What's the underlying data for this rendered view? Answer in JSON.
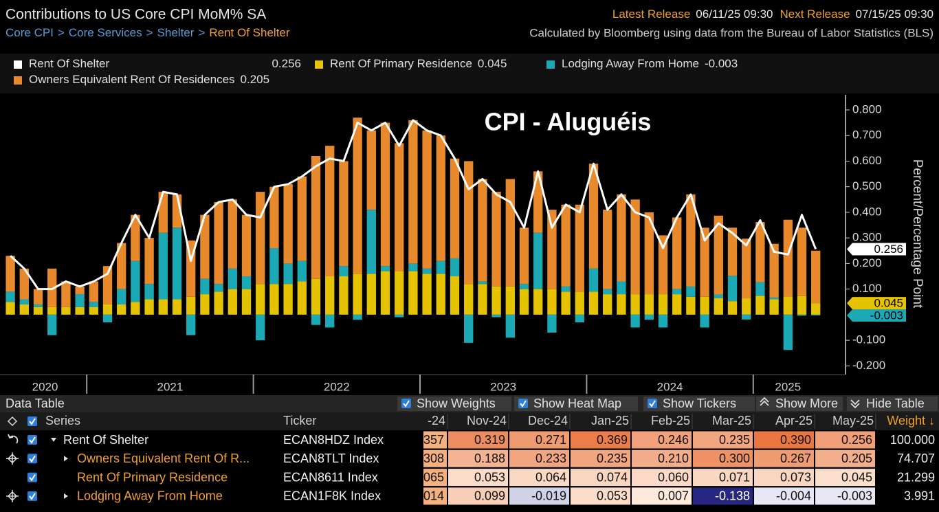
{
  "header": {
    "title": "Contributions to US Core CPI MoM% SA",
    "breadcrumb": [
      "Core CPI",
      "Core Services",
      "Shelter",
      "Rent Of Shelter"
    ],
    "separator": ">",
    "latest_release_label": "Latest Release",
    "latest_release": "06/11/25 09:30",
    "next_release_label": "Next Release",
    "next_release": "07/15/25 09:30",
    "source": "Calculated by Bloomberg using data from the Bureau of Labor Statistics (BLS)"
  },
  "chart_data": {
    "type": "bar",
    "stacked": true,
    "annotation": "CPI - Aluguéis",
    "ylabel": "Percent/Percentage Point",
    "categories": [
      null,
      null,
      null,
      null,
      null,
      null,
      null,
      null,
      null,
      null,
      null,
      null,
      null,
      null,
      null,
      null,
      null,
      null,
      null,
      null,
      null,
      null,
      null,
      null,
      null,
      null,
      null,
      null,
      null,
      null,
      null,
      null,
      null,
      null,
      null,
      null,
      null,
      null,
      null,
      null,
      null,
      null,
      null,
      null,
      null,
      null,
      null,
      null,
      null,
      null,
      null,
      null,
      null,
      null,
      null,
      null,
      null,
      null,
      null
    ],
    "year_labels": [
      "2020",
      "2021",
      "2022",
      "2023",
      "2024",
      "2025"
    ],
    "ylim": [
      -0.234,
      0.859
    ],
    "yticks": [
      {
        "value": 0.8,
        "label": "0.800"
      },
      {
        "value": 0.7,
        "label": "0.700"
      },
      {
        "value": 0.6,
        "label": "0.600"
      },
      {
        "value": 0.5,
        "label": "0.500"
      },
      {
        "value": 0.4,
        "label": "0.400"
      },
      {
        "value": 0.3,
        "label": "0.300"
      },
      {
        "value": 0.2,
        "label": "0.200"
      },
      {
        "value": 0.1,
        "label": "0.100"
      },
      {
        "value": -0.1,
        "label": "-0.100"
      },
      {
        "value": -0.2,
        "label": "-0.200"
      }
    ],
    "series": [
      {
        "name": "Rent Of Shelter",
        "type": "line",
        "color": "#ffffff",
        "last_value_label": true,
        "values": [
          0.23,
          0.18,
          0.1,
          0.1,
          0.13,
          0.11,
          0.13,
          0.16,
          0.28,
          0.39,
          0.3,
          0.48,
          0.47,
          0.21,
          0.39,
          0.44,
          0.45,
          0.39,
          0.38,
          0.5,
          0.51,
          0.54,
          0.58,
          0.61,
          0.6,
          0.75,
          0.72,
          0.75,
          0.66,
          0.76,
          0.72,
          0.7,
          0.61,
          0.49,
          0.53,
          0.47,
          0.44,
          0.34,
          0.56,
          0.34,
          0.43,
          0.4,
          0.59,
          0.41,
          0.47,
          0.4,
          0.38,
          0.26,
          0.38,
          0.47,
          0.29,
          0.357,
          0.319,
          0.271,
          0.369,
          0.246,
          0.235,
          0.39,
          0.256
        ]
      },
      {
        "name": "Rent Of Primary Residence",
        "type": "bar",
        "color": "#e6c300",
        "last_value_label": true,
        "values": [
          0.05,
          0.04,
          0.03,
          0.03,
          0.03,
          0.03,
          0.03,
          0.04,
          0.04,
          0.05,
          0.06,
          0.06,
          0.06,
          0.07,
          0.08,
          0.09,
          0.1,
          0.1,
          0.12,
          0.12,
          0.12,
          0.13,
          0.14,
          0.15,
          0.15,
          0.16,
          0.16,
          0.17,
          0.17,
          0.17,
          0.16,
          0.16,
          0.15,
          0.12,
          0.12,
          0.11,
          0.11,
          0.1,
          0.1,
          0.1,
          0.09,
          0.09,
          0.09,
          0.08,
          0.08,
          0.08,
          0.08,
          0.08,
          0.08,
          0.07,
          0.07,
          0.065,
          0.053,
          0.064,
          0.074,
          0.06,
          0.071,
          0.073,
          0.045
        ]
      },
      {
        "name": "Lodging Away From Home",
        "type": "bar",
        "color": "#1ba9b5",
        "last_value_label": true,
        "values": [
          0.04,
          0.02,
          0.01,
          -0.08,
          0.0,
          0.05,
          0.02,
          -0.03,
          0.06,
          0.16,
          0.06,
          0.26,
          0.28,
          -0.08,
          0.06,
          0.03,
          0.08,
          0.05,
          -0.1,
          0.14,
          0.08,
          0.08,
          -0.04,
          -0.05,
          0.04,
          -0.02,
          0.25,
          0.02,
          -0.01,
          0.03,
          0.02,
          0.05,
          0.07,
          -0.11,
          0.01,
          -0.01,
          -0.09,
          0.02,
          0.22,
          -0.07,
          0.02,
          -0.03,
          0.09,
          0.02,
          0.05,
          -0.05,
          -0.02,
          -0.05,
          0.02,
          0.04,
          -0.05,
          0.014,
          0.099,
          -0.019,
          0.053,
          0.007,
          -0.138,
          -0.004,
          -0.003
        ]
      },
      {
        "name": "Owners Equivalent Rent Of Residences",
        "type": "bar",
        "color": "#e8892b",
        "last_value_label": false,
        "values": [
          0.14,
          0.12,
          0.06,
          0.15,
          0.1,
          0.03,
          0.08,
          0.15,
          0.18,
          0.18,
          0.18,
          0.16,
          0.13,
          0.22,
          0.25,
          0.32,
          0.27,
          0.24,
          0.36,
          0.24,
          0.31,
          0.33,
          0.48,
          0.51,
          0.41,
          0.61,
          0.31,
          0.56,
          0.5,
          0.56,
          0.54,
          0.49,
          0.39,
          0.48,
          0.4,
          0.37,
          0.42,
          0.22,
          0.24,
          0.31,
          0.32,
          0.34,
          0.41,
          0.31,
          0.34,
          0.37,
          0.32,
          0.23,
          0.28,
          0.36,
          0.27,
          0.308,
          0.188,
          0.233,
          0.235,
          0.21,
          0.3,
          0.267,
          0.205
        ]
      }
    ]
  },
  "table": {
    "title": "Data Table",
    "toggles": [
      "Show Weights",
      "Show Heat Map",
      "Show Tickers"
    ],
    "buttons": [
      "Show More",
      "Hide Table"
    ],
    "columns": [
      "Series",
      "Ticker",
      "-24",
      "Nov-24",
      "Dec-24",
      "Jan-25",
      "Feb-25",
      "Mar-25",
      "Apr-25",
      "May-25",
      "Weight ↓"
    ],
    "rows": [
      [
        "Rent Of Shelter",
        "ECAN8HDZ Index",
        "357",
        "0.319",
        "0.271",
        "0.369",
        "0.246",
        "0.235",
        "0.390",
        "0.256",
        "100.000"
      ],
      [
        "Owners Equivalent Rent Of R...",
        "ECAN8TLT Index",
        "308",
        "0.188",
        "0.233",
        "0.235",
        "0.210",
        "0.300",
        "0.267",
        "0.205",
        "74.707"
      ],
      [
        "Rent Of Primary Residence",
        "ECAN8611 Index",
        "065",
        "0.053",
        "0.064",
        "0.074",
        "0.060",
        "0.071",
        "0.073",
        "0.045",
        "21.299"
      ],
      [
        "Lodging Away From Home",
        "ECAN1F8K Index",
        "014",
        "0.099",
        "-0.019",
        "0.053",
        "0.007",
        "-0.138",
        "-0.004",
        "-0.003",
        "3.991"
      ]
    ]
  }
}
